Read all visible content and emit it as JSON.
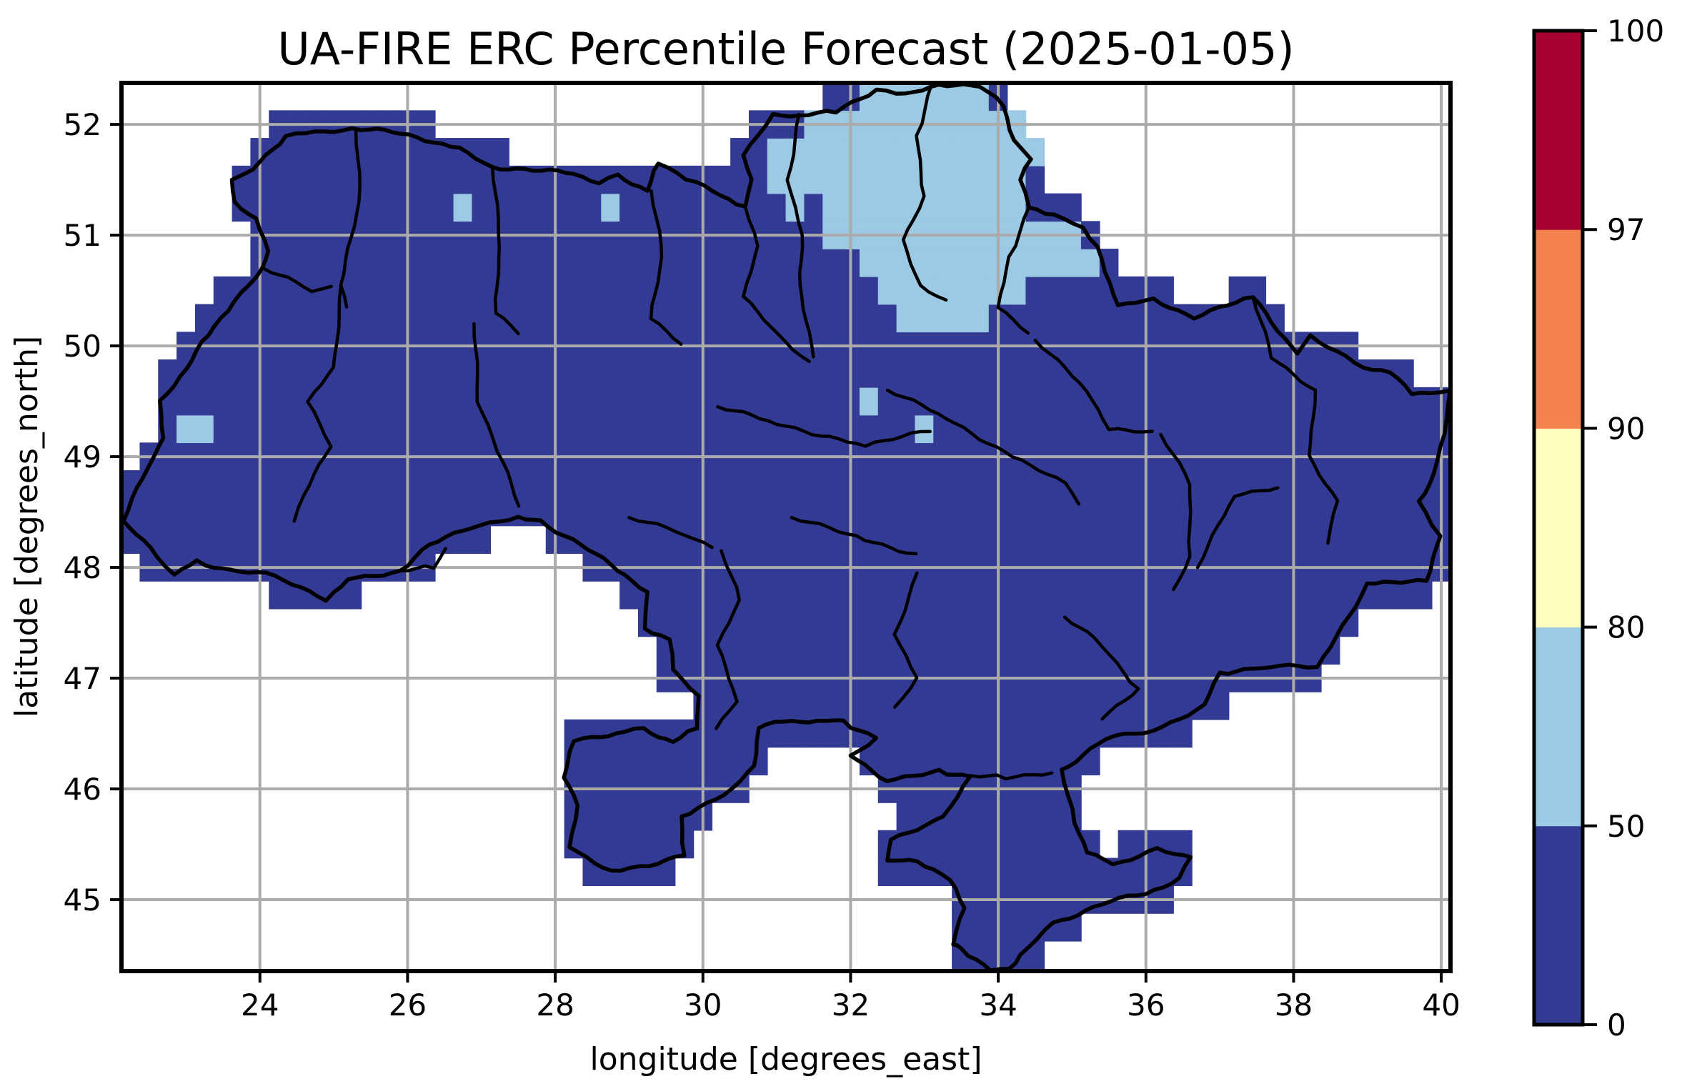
{
  "chart_data": {
    "type": "heatmap",
    "title": "UA-FIRE ERC Percentile Forecast (2025-01-05)",
    "xlabel": "longitude [degrees_east]",
    "ylabel": "latitude [degrees_north]",
    "xlim": [
      22.125,
      40.125
    ],
    "ylim": [
      44.355,
      52.375
    ],
    "xticks": [
      24,
      26,
      28,
      30,
      32,
      34,
      36,
      38,
      40
    ],
    "yticks": [
      45,
      46,
      47,
      48,
      49,
      50,
      51,
      52
    ],
    "grid": true,
    "grid_color": "#ABABAB",
    "cell_size_deg": 0.25,
    "classes": [
      {
        "label": "0-50",
        "range": [
          0,
          50
        ],
        "color": "#333A93"
      },
      {
        "label": "50-80",
        "range": [
          50,
          80
        ],
        "color": "#9CC9E3"
      },
      {
        "label": "80-90",
        "range": [
          80,
          90
        ],
        "color": "#FFFFBF"
      },
      {
        "label": "90-97",
        "range": [
          90,
          97
        ],
        "color": "#F4824F"
      },
      {
        "label": "97-100",
        "range": [
          97,
          100
        ],
        "color": "#A50232"
      }
    ],
    "colorbar": {
      "boundaries": [
        0,
        50,
        80,
        90,
        97,
        100
      ],
      "tick_labels": [
        "0",
        "50",
        "80",
        "90",
        "97",
        "100"
      ],
      "spacing": "uniform",
      "colors_bottom_to_top": [
        "#333A93",
        "#9CC9E3",
        "#FFFFBF",
        "#F4824F",
        "#A50232"
      ]
    },
    "base_class": "0-50",
    "elevated_class": "50-80",
    "elevated_boxes": [
      {
        "lon": [
          32.125,
          33.875
        ],
        "lat": [
          52.125,
          52.375
        ]
      },
      {
        "lon": [
          31.375,
          34.375
        ],
        "lat": [
          51.875,
          52.125
        ]
      },
      {
        "lon": [
          30.875,
          34.125
        ],
        "lat": [
          51.375,
          51.875
        ]
      },
      {
        "lon": [
          34.125,
          34.375
        ],
        "lat": [
          51.125,
          51.875
        ]
      },
      {
        "lon": [
          34.375,
          34.625
        ],
        "lat": [
          51.625,
          51.875
        ]
      },
      {
        "lon": [
          31.125,
          34.125
        ],
        "lat": [
          51.125,
          51.375
        ]
      },
      {
        "lon": [
          31.625,
          34.125
        ],
        "lat": [
          50.875,
          51.125
        ]
      },
      {
        "lon": [
          34.125,
          35.125
        ],
        "lat": [
          50.875,
          51.125
        ]
      },
      {
        "lon": [
          32.125,
          34.125
        ],
        "lat": [
          50.625,
          50.875
        ]
      },
      {
        "lon": [
          34.125,
          35.375
        ],
        "lat": [
          50.625,
          50.875
        ]
      },
      {
        "lon": [
          32.375,
          34.125
        ],
        "lat": [
          50.375,
          50.625
        ]
      },
      {
        "lon": [
          34.125,
          34.375
        ],
        "lat": [
          50.375,
          50.625
        ]
      },
      {
        "lon": [
          32.625,
          33.875
        ],
        "lat": [
          50.125,
          50.375
        ]
      },
      {
        "lon": [
          26.625,
          26.875
        ],
        "lat": [
          51.125,
          51.375
        ]
      },
      {
        "lon": [
          28.625,
          28.875
        ],
        "lat": [
          51.125,
          51.375
        ]
      },
      {
        "lon": [
          22.875,
          23.375
        ],
        "lat": [
          49.125,
          49.375
        ]
      },
      {
        "lon": [
          32.125,
          32.375
        ],
        "lat": [
          49.375,
          49.625
        ]
      },
      {
        "lon": [
          32.875,
          33.125
        ],
        "lat": [
          49.125,
          49.375
        ]
      }
    ],
    "suppressed_boxes": [
      {
        "lon": [
          31.375,
          31.625
        ],
        "lat": [
          51.125,
          51.375
        ]
      }
    ],
    "map_geometry": {
      "country_outline": [
        [
          23.62,
          51.5
        ],
        [
          23.9,
          51.6
        ],
        [
          24.35,
          51.9
        ],
        [
          24.75,
          51.92
        ],
        [
          25.25,
          51.97
        ],
        [
          25.8,
          51.93
        ],
        [
          26.35,
          51.85
        ],
        [
          26.7,
          51.77
        ],
        [
          27.15,
          51.62
        ],
        [
          27.7,
          51.58
        ],
        [
          28.25,
          51.57
        ],
        [
          28.6,
          51.45
        ],
        [
          28.85,
          51.55
        ],
        [
          29.25,
          51.4
        ],
        [
          29.4,
          51.66
        ],
        [
          29.9,
          51.47
        ],
        [
          30.35,
          51.32
        ],
        [
          30.57,
          51.26
        ],
        [
          30.65,
          51.5
        ],
        [
          30.55,
          51.72
        ],
        [
          30.95,
          52.08
        ],
        [
          31.3,
          52.09
        ],
        [
          31.8,
          52.11
        ],
        [
          32.35,
          52.32
        ],
        [
          32.75,
          52.26
        ],
        [
          33.2,
          52.37
        ],
        [
          33.75,
          52.34
        ],
        [
          34.08,
          52.17
        ],
        [
          34.2,
          51.84
        ],
        [
          34.45,
          51.68
        ],
        [
          34.3,
          51.5
        ],
        [
          34.42,
          51.26
        ],
        [
          34.75,
          51.17
        ],
        [
          35.15,
          51.07
        ],
        [
          35.35,
          50.9
        ],
        [
          35.45,
          50.67
        ],
        [
          35.62,
          50.36
        ],
        [
          36.1,
          50.42
        ],
        [
          36.65,
          50.26
        ],
        [
          37.45,
          50.44
        ],
        [
          38.05,
          49.93
        ],
        [
          38.22,
          50.08
        ],
        [
          38.95,
          49.82
        ],
        [
          39.3,
          49.76
        ],
        [
          39.6,
          49.57
        ],
        [
          40.1,
          49.6
        ],
        [
          40.06,
          49.2
        ],
        [
          39.9,
          48.85
        ],
        [
          39.7,
          48.6
        ],
        [
          39.97,
          48.29
        ],
        [
          39.8,
          47.87
        ],
        [
          39.0,
          47.85
        ],
        [
          38.32,
          47.1
        ],
        [
          37.55,
          47.1
        ],
        [
          37.0,
          47.05
        ],
        [
          36.8,
          46.75
        ],
        [
          36.1,
          46.53
        ],
        [
          35.45,
          46.45
        ],
        [
          34.85,
          46.17
        ],
        [
          35.05,
          45.7
        ],
        [
          35.2,
          45.42
        ],
        [
          35.55,
          45.32
        ],
        [
          36.15,
          45.45
        ],
        [
          36.62,
          45.37
        ],
        [
          36.45,
          45.2
        ],
        [
          36.0,
          45.05
        ],
        [
          35.4,
          44.97
        ],
        [
          34.75,
          44.78
        ],
        [
          34.3,
          44.5
        ],
        [
          34.15,
          44.38
        ],
        [
          33.9,
          44.37
        ],
        [
          33.5,
          44.55
        ],
        [
          33.38,
          44.6
        ],
        [
          33.55,
          44.93
        ],
        [
          33.35,
          45.18
        ],
        [
          32.9,
          45.35
        ],
        [
          32.48,
          45.36
        ],
        [
          32.55,
          45.53
        ],
        [
          33.25,
          45.75
        ],
        [
          33.62,
          46.12
        ],
        [
          33.2,
          46.15
        ],
        [
          32.5,
          46.08
        ],
        [
          32.0,
          46.3
        ],
        [
          32.35,
          46.47
        ],
        [
          31.9,
          46.6
        ],
        [
          31.55,
          46.62
        ],
        [
          31.2,
          46.62
        ],
        [
          30.75,
          46.55
        ],
        [
          30.7,
          46.2
        ],
        [
          30.4,
          46.0
        ],
        [
          29.7,
          45.75
        ],
        [
          29.75,
          45.4
        ],
        [
          29.15,
          45.3
        ],
        [
          28.75,
          45.25
        ],
        [
          28.21,
          45.47
        ],
        [
          28.3,
          45.85
        ],
        [
          28.12,
          46.1
        ],
        [
          28.25,
          46.45
        ],
        [
          28.95,
          46.5
        ],
        [
          29.2,
          46.55
        ],
        [
          29.6,
          46.42
        ],
        [
          29.9,
          46.55
        ],
        [
          29.95,
          46.85
        ],
        [
          29.6,
          47.08
        ],
        [
          29.55,
          47.35
        ],
        [
          29.2,
          47.45
        ],
        [
          29.25,
          47.78
        ],
        [
          28.85,
          47.98
        ],
        [
          28.35,
          48.2
        ],
        [
          27.8,
          48.42
        ],
        [
          27.5,
          48.45
        ],
        [
          26.85,
          48.37
        ],
        [
          26.3,
          48.2
        ],
        [
          25.9,
          47.97
        ],
        [
          25.2,
          47.88
        ],
        [
          24.9,
          47.72
        ],
        [
          24.2,
          47.92
        ],
        [
          23.6,
          47.98
        ],
        [
          23.15,
          48.05
        ],
        [
          22.85,
          47.95
        ],
        [
          22.6,
          48.1
        ],
        [
          22.15,
          48.42
        ],
        [
          22.55,
          49.0
        ],
        [
          22.7,
          49.17
        ],
        [
          22.65,
          49.5
        ],
        [
          23.0,
          49.8
        ],
        [
          23.3,
          50.1
        ],
        [
          23.65,
          50.4
        ],
        [
          24.05,
          50.7
        ],
        [
          24.1,
          50.85
        ],
        [
          23.95,
          51.15
        ],
        [
          23.65,
          51.3
        ]
      ],
      "region_borders": [
        [
          [
            25.3,
            51.95
          ],
          [
            25.35,
            51.3
          ],
          [
            25.1,
            50.55
          ],
          [
            25.2,
            50.25
          ]
        ],
        [
          [
            27.15,
            51.62
          ],
          [
            27.25,
            50.9
          ],
          [
            27.2,
            50.3
          ],
          [
            27.6,
            50.05
          ]
        ],
        [
          [
            29.3,
            51.4
          ],
          [
            29.45,
            50.8
          ],
          [
            29.3,
            50.25
          ],
          [
            29.8,
            49.95
          ]
        ],
        [
          [
            30.57,
            51.26
          ],
          [
            30.75,
            50.9
          ],
          [
            30.55,
            50.45
          ],
          [
            31.0,
            50.1
          ],
          [
            31.55,
            49.8
          ]
        ],
        [
          [
            31.3,
            52.09
          ],
          [
            31.15,
            51.5
          ],
          [
            31.35,
            51.0
          ],
          [
            31.3,
            50.55
          ],
          [
            31.55,
            49.8
          ]
        ],
        [
          [
            33.1,
            52.37
          ],
          [
            32.9,
            51.9
          ],
          [
            33.0,
            51.35
          ],
          [
            32.7,
            50.95
          ],
          [
            32.95,
            50.55
          ],
          [
            33.4,
            50.35
          ]
        ],
        [
          [
            34.42,
            51.26
          ],
          [
            34.15,
            50.8
          ],
          [
            34.0,
            50.35
          ],
          [
            34.5,
            50.05
          ]
        ],
        [
          [
            24.05,
            50.7
          ],
          [
            24.7,
            50.5
          ],
          [
            25.1,
            50.55
          ]
        ],
        [
          [
            25.1,
            50.55
          ],
          [
            25.0,
            49.8
          ],
          [
            24.65,
            49.5
          ],
          [
            24.95,
            49.1
          ],
          [
            24.6,
            48.65
          ],
          [
            24.4,
            48.3
          ]
        ],
        [
          [
            26.9,
            50.2
          ],
          [
            26.95,
            49.5
          ],
          [
            27.3,
            48.95
          ],
          [
            27.55,
            48.45
          ]
        ],
        [
          [
            25.9,
            47.97
          ],
          [
            26.35,
            48.0
          ],
          [
            26.6,
            48.25
          ]
        ],
        [
          [
            29.0,
            48.45
          ],
          [
            29.75,
            48.3
          ],
          [
            30.25,
            48.15
          ]
        ],
        [
          [
            30.2,
            49.45
          ],
          [
            31.0,
            49.3
          ],
          [
            32.2,
            49.1
          ],
          [
            33.2,
            49.25
          ]
        ],
        [
          [
            32.5,
            49.6
          ],
          [
            33.3,
            49.35
          ],
          [
            34.2,
            49.0
          ],
          [
            34.9,
            48.75
          ],
          [
            35.2,
            48.5
          ]
        ],
        [
          [
            34.5,
            50.05
          ],
          [
            35.2,
            49.6
          ],
          [
            35.5,
            49.25
          ],
          [
            36.2,
            49.2
          ]
        ],
        [
          [
            36.2,
            49.2
          ],
          [
            36.6,
            48.75
          ],
          [
            36.6,
            48.1
          ],
          [
            36.3,
            47.7
          ]
        ],
        [
          [
            37.45,
            50.44
          ],
          [
            37.7,
            49.9
          ],
          [
            38.3,
            49.6
          ],
          [
            38.2,
            49.0
          ],
          [
            38.6,
            48.6
          ],
          [
            38.4,
            48.1
          ]
        ],
        [
          [
            30.25,
            48.15
          ],
          [
            30.5,
            47.7
          ],
          [
            30.2,
            47.3
          ],
          [
            30.45,
            46.8
          ],
          [
            30.1,
            46.45
          ]
        ],
        [
          [
            31.2,
            48.45
          ],
          [
            32.2,
            48.25
          ],
          [
            33.0,
            48.1
          ]
        ],
        [
          [
            32.9,
            47.95
          ],
          [
            32.6,
            47.4
          ],
          [
            32.9,
            47.0
          ],
          [
            32.5,
            46.65
          ]
        ],
        [
          [
            34.9,
            47.55
          ],
          [
            35.4,
            47.3
          ],
          [
            35.9,
            46.9
          ],
          [
            35.3,
            46.6
          ]
        ],
        [
          [
            33.62,
            46.12
          ],
          [
            34.1,
            46.1
          ],
          [
            34.85,
            46.17
          ]
        ],
        [
          [
            36.7,
            48.0
          ],
          [
            37.2,
            48.65
          ],
          [
            37.9,
            48.75
          ]
        ]
      ]
    }
  }
}
